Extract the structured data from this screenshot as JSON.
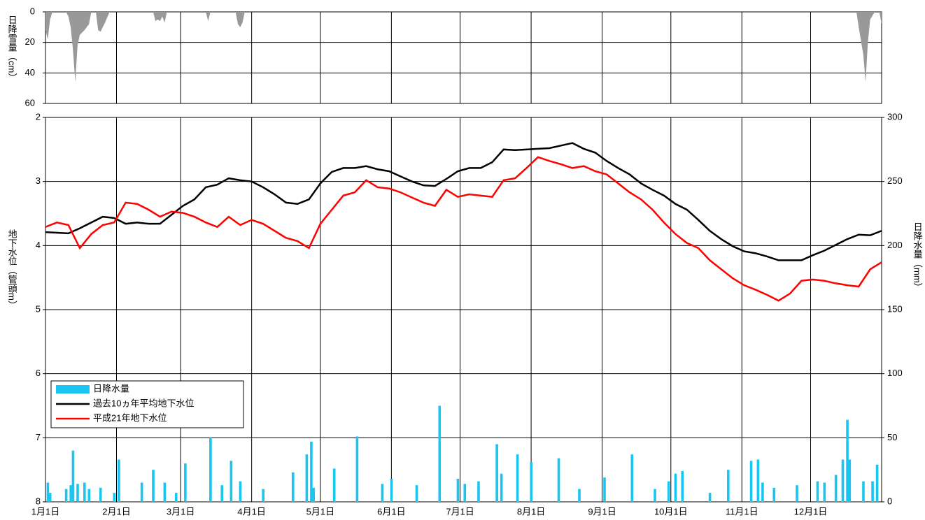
{
  "chart_data": [
    {
      "type": "area",
      "ylabel": "日降雪量（cm）",
      "invert_y": true,
      "xlim": [
        0,
        365
      ],
      "xticks": [
        0,
        31,
        59,
        90,
        120,
        151,
        181,
        212,
        243,
        273,
        304,
        334
      ],
      "ylim": [
        0,
        60
      ],
      "yticks": [
        0,
        20,
        40,
        60
      ],
      "grid": true,
      "series": [
        {
          "name": "日降雪量",
          "color": "#999999",
          "x": [
            0,
            1,
            2,
            3,
            9,
            10,
            11,
            12,
            13,
            14,
            15,
            17,
            19,
            20,
            22,
            23,
            24,
            26,
            28,
            47,
            48,
            49,
            50,
            51,
            52,
            53,
            70,
            71,
            72,
            83,
            84,
            85,
            86,
            87,
            354,
            355,
            357,
            358,
            359,
            360,
            362,
            364,
            365
          ],
          "values": [
            12,
            18,
            5,
            0,
            0,
            3,
            10,
            25,
            46,
            22,
            15,
            12,
            8,
            0,
            0,
            12,
            13,
            7,
            0,
            0,
            6,
            5,
            6,
            3,
            7,
            0,
            0,
            6,
            0,
            0,
            8,
            10,
            7,
            0,
            0,
            10,
            28,
            46,
            20,
            5,
            0,
            0,
            8
          ]
        }
      ]
    },
    {
      "type": "line",
      "ylabel": "地下水位（管頭m）",
      "y2label": "日降水量（mm）",
      "invert_y": true,
      "xlim": [
        0,
        365
      ],
      "xticks": [
        {
          "value": 0,
          "label": "1月1日"
        },
        {
          "value": 31,
          "label": "2月1日"
        },
        {
          "value": 59,
          "label": "3月1日"
        },
        {
          "value": 90,
          "label": "4月1日"
        },
        {
          "value": 120,
          "label": "5月1日"
        },
        {
          "value": 151,
          "label": "6月1日"
        },
        {
          "value": 181,
          "label": "7月1日"
        },
        {
          "value": 212,
          "label": "8月1日"
        },
        {
          "value": 243,
          "label": "9月1日"
        },
        {
          "value": 273,
          "label": "10月1日"
        },
        {
          "value": 304,
          "label": "11月1日"
        },
        {
          "value": 334,
          "label": "12月1日"
        }
      ],
      "ylim": [
        2,
        8
      ],
      "yticks": [
        2,
        3,
        4,
        5,
        6,
        7,
        8
      ],
      "y2lim": [
        0,
        300
      ],
      "y2ticks": [
        0,
        50,
        100,
        150,
        200,
        250,
        300
      ],
      "grid": true,
      "legend": "lower left",
      "series": [
        {
          "name": "日降水量",
          "type": "bar",
          "axis": "y2",
          "color": "#19c6f2",
          "x": [
            1,
            2,
            9,
            11,
            12,
            14,
            17,
            19,
            24,
            30,
            32,
            42,
            47,
            52,
            57,
            61,
            72,
            77,
            81,
            85,
            95,
            108,
            114,
            116,
            117,
            126,
            136,
            147,
            151,
            162,
            172,
            180,
            183,
            189,
            197,
            199,
            206,
            212,
            224,
            233,
            244,
            256,
            266,
            272,
            275,
            278,
            290,
            298,
            308,
            311,
            313,
            318,
            328,
            337,
            340,
            345,
            348,
            350,
            351,
            357,
            361,
            363
          ],
          "values": [
            15,
            7,
            10,
            13,
            40,
            14,
            15,
            10,
            11,
            7,
            33,
            15,
            25,
            15,
            7,
            30,
            50,
            13,
            32,
            16,
            10,
            23,
            37,
            47,
            11,
            26,
            51,
            14,
            18,
            13,
            75,
            18,
            14,
            16,
            45,
            22,
            37,
            31,
            34,
            10,
            19,
            37,
            10,
            16,
            22,
            24,
            7,
            25,
            32,
            33,
            15,
            11,
            13,
            16,
            15,
            21,
            33,
            64,
            33,
            16,
            16,
            29
          ]
        },
        {
          "name": "過去10ヵ年平均地下水位",
          "type": "line",
          "color": "#000000",
          "x": [
            0,
            10,
            15,
            20,
            25,
            30,
            35,
            40,
            45,
            50,
            55,
            60,
            65,
            70,
            75,
            80,
            85,
            90,
            95,
            100,
            105,
            110,
            115,
            120,
            125,
            130,
            135,
            140,
            145,
            150,
            155,
            160,
            165,
            170,
            175,
            180,
            185,
            190,
            195,
            200,
            205,
            210,
            215,
            220,
            225,
            230,
            235,
            240,
            245,
            250,
            255,
            260,
            265,
            270,
            275,
            280,
            285,
            290,
            295,
            300,
            305,
            310,
            315,
            320,
            325,
            330,
            335,
            340,
            345,
            350,
            355,
            360,
            365
          ],
          "values": [
            3.79,
            3.81,
            3.73,
            3.64,
            3.55,
            3.57,
            3.66,
            3.64,
            3.66,
            3.66,
            3.52,
            3.38,
            3.28,
            3.09,
            3.05,
            2.95,
            2.98,
            3.0,
            3.09,
            3.2,
            3.33,
            3.35,
            3.28,
            3.03,
            2.85,
            2.79,
            2.79,
            2.76,
            2.81,
            2.84,
            2.92,
            3.0,
            3.06,
            3.07,
            2.96,
            2.84,
            2.79,
            2.79,
            2.7,
            2.5,
            2.51,
            2.5,
            2.49,
            2.48,
            2.44,
            2.4,
            2.49,
            2.55,
            2.68,
            2.79,
            2.89,
            3.03,
            3.13,
            3.22,
            3.35,
            3.44,
            3.6,
            3.77,
            3.9,
            4.01,
            4.09,
            4.12,
            4.17,
            4.23,
            4.23,
            4.23,
            4.15,
            4.08,
            3.99,
            3.9,
            3.83,
            3.84,
            3.77
          ]
        },
        {
          "name": "平成21年地下水位",
          "type": "line",
          "color": "#ff0000",
          "x": [
            0,
            5,
            10,
            15,
            20,
            25,
            30,
            35,
            40,
            45,
            50,
            55,
            60,
            65,
            70,
            75,
            80,
            85,
            90,
            95,
            100,
            105,
            110,
            115,
            120,
            125,
            130,
            135,
            140,
            145,
            150,
            155,
            160,
            165,
            170,
            175,
            180,
            185,
            190,
            195,
            200,
            205,
            210,
            215,
            220,
            225,
            230,
            235,
            240,
            245,
            250,
            255,
            260,
            265,
            270,
            275,
            280,
            285,
            290,
            295,
            300,
            305,
            310,
            315,
            320,
            325,
            330,
            335,
            340,
            345,
            350,
            355,
            360,
            365
          ],
          "values": [
            3.71,
            3.64,
            3.68,
            4.04,
            3.82,
            3.68,
            3.64,
            3.33,
            3.35,
            3.44,
            3.55,
            3.47,
            3.49,
            3.55,
            3.64,
            3.71,
            3.55,
            3.68,
            3.6,
            3.66,
            3.77,
            3.88,
            3.93,
            4.04,
            3.66,
            3.44,
            3.22,
            3.17,
            2.98,
            3.09,
            3.11,
            3.17,
            3.25,
            3.33,
            3.38,
            3.13,
            3.24,
            3.2,
            3.22,
            3.24,
            2.98,
            2.95,
            2.79,
            2.62,
            2.68,
            2.73,
            2.79,
            2.76,
            2.84,
            2.89,
            3.03,
            3.17,
            3.28,
            3.44,
            3.64,
            3.82,
            3.96,
            4.04,
            4.23,
            4.37,
            4.51,
            4.62,
            4.69,
            4.77,
            4.86,
            4.75,
            4.55,
            4.53,
            4.55,
            4.59,
            4.62,
            4.64,
            4.37,
            4.26
          ]
        }
      ]
    }
  ]
}
